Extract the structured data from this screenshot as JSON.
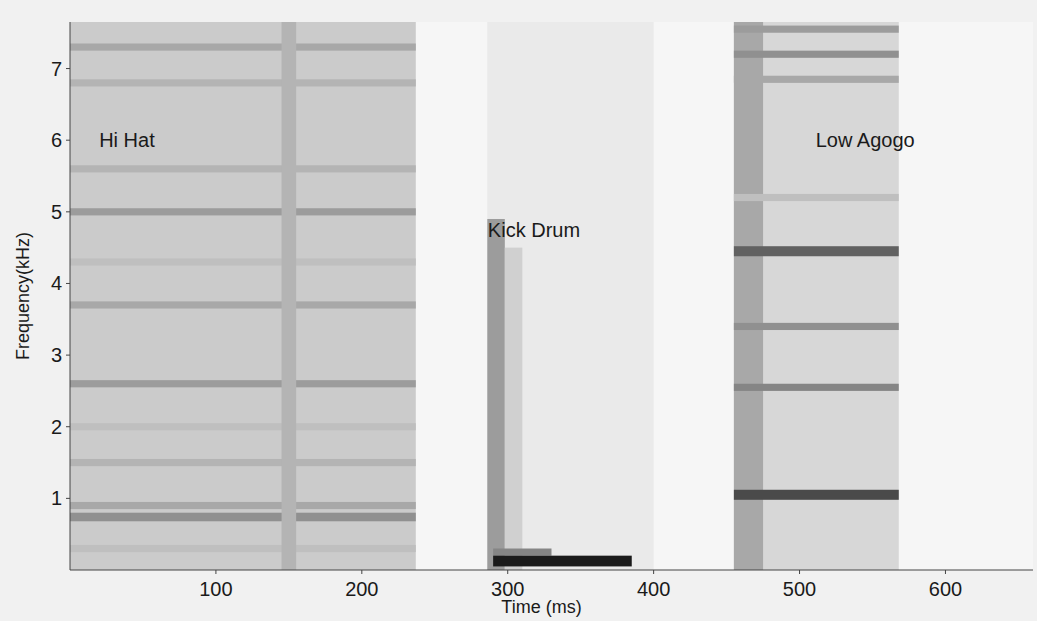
{
  "chart_data": {
    "type": "spectrogram",
    "x_label": "Time (ms)",
    "y_label": "Frequency(kHz)",
    "xlim": [
      0,
      660
    ],
    "xticks": [
      100,
      200,
      300,
      400,
      500,
      600
    ],
    "ylim": [
      0,
      7.65
    ],
    "yticks": [
      1,
      2,
      3,
      4,
      5,
      6,
      7
    ],
    "color": "#000000",
    "events": [
      {
        "label": "Hi Hat",
        "start": 0,
        "end": 237,
        "level": 0.2,
        "bands": [
          {
            "low": 0.25,
            "high": 0.35,
            "level": 0.25
          },
          {
            "low": 0.68,
            "high": 0.8,
            "level": 0.45
          },
          {
            "low": 0.85,
            "high": 0.95,
            "level": 0.35
          },
          {
            "low": 1.45,
            "high": 1.55,
            "level": 0.3
          },
          {
            "low": 1.95,
            "high": 2.05,
            "level": 0.25
          },
          {
            "low": 2.55,
            "high": 2.65,
            "level": 0.4
          },
          {
            "low": 3.65,
            "high": 3.75,
            "level": 0.35
          },
          {
            "low": 4.25,
            "high": 4.35,
            "level": 0.25
          },
          {
            "low": 4.95,
            "high": 5.05,
            "level": 0.4
          },
          {
            "low": 5.55,
            "high": 5.65,
            "level": 0.3
          },
          {
            "low": 6.75,
            "high": 6.85,
            "level": 0.3
          },
          {
            "low": 7.25,
            "high": 7.35,
            "level": 0.35
          },
          {
            "low": 0,
            "high": 7.65,
            "start": 145,
            "end": 155,
            "level": 0.3
          }
        ]
      },
      {
        "label": "Kick Drum",
        "start": 286,
        "end": 400,
        "level": 0.07,
        "bands": [
          {
            "low": 0,
            "high": 4.9,
            "start": 286,
            "end": 298,
            "level": 0.4
          },
          {
            "low": 0,
            "high": 4.5,
            "start": 298,
            "end": 310,
            "level": 0.18
          },
          {
            "low": 0.2,
            "high": 0.3,
            "start": 290,
            "end": 330,
            "level": 0.5
          },
          {
            "low": 0.05,
            "high": 0.2,
            "start": 290,
            "end": 385,
            "level": 0.95
          }
        ]
      },
      {
        "label": "Low Agogo",
        "start": 455,
        "end": 568,
        "level": 0.15,
        "bands": [
          {
            "low": 0,
            "high": 7.65,
            "start": 455,
            "end": 475,
            "level": 0.35
          },
          {
            "low": 0.98,
            "high": 1.12,
            "level": 0.75
          },
          {
            "low": 2.5,
            "high": 2.6,
            "level": 0.5
          },
          {
            "low": 3.35,
            "high": 3.45,
            "level": 0.45
          },
          {
            "low": 4.38,
            "high": 4.52,
            "level": 0.65
          },
          {
            "low": 5.15,
            "high": 5.25,
            "level": 0.25
          },
          {
            "low": 6.8,
            "high": 6.9,
            "level": 0.35
          },
          {
            "low": 7.15,
            "high": 7.25,
            "level": 0.45
          },
          {
            "low": 7.5,
            "high": 7.6,
            "level": 0.4
          }
        ]
      }
    ]
  }
}
